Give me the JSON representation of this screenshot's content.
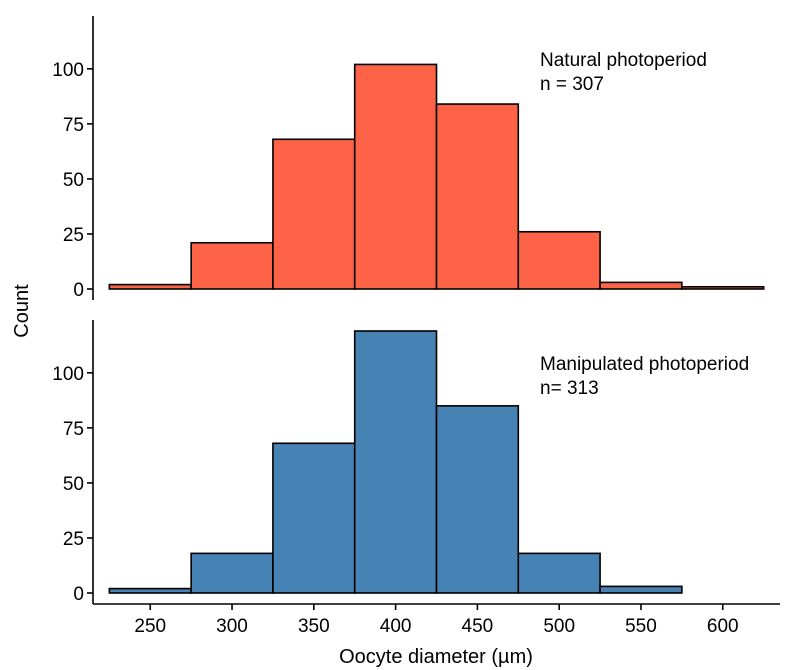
{
  "chart_data": {
    "type": "bar",
    "title": "",
    "xlabel": "Oocyte diameter (µm)",
    "ylabel": "Count",
    "xlim": [
      215,
      635
    ],
    "xticks": [
      250,
      300,
      350,
      400,
      450,
      500,
      550,
      600
    ],
    "bin_width": 50,
    "grid": false,
    "panels": [
      {
        "annotation_line1": "Natural photoperiod",
        "annotation_line2": "n = 307",
        "color": "#FF6347",
        "ylim": [
          -5,
          124
        ],
        "yticks": [
          0,
          25,
          50,
          75,
          100
        ],
        "bins": [
          {
            "center": 250,
            "count": 2
          },
          {
            "center": 300,
            "count": 21
          },
          {
            "center": 350,
            "count": 68
          },
          {
            "center": 400,
            "count": 102
          },
          {
            "center": 450,
            "count": 84
          },
          {
            "center": 500,
            "count": 26
          },
          {
            "center": 550,
            "count": 3
          },
          {
            "center": 600,
            "count": 1
          }
        ]
      },
      {
        "annotation_line1": "Manipulated photoperiod",
        "annotation_line2": "n= 313",
        "color": "#4682B4",
        "ylim": [
          -5,
          124
        ],
        "yticks": [
          0,
          25,
          50,
          75,
          100
        ],
        "bins": [
          {
            "center": 250,
            "count": 2
          },
          {
            "center": 300,
            "count": 18
          },
          {
            "center": 350,
            "count": 68
          },
          {
            "center": 400,
            "count": 119
          },
          {
            "center": 450,
            "count": 85
          },
          {
            "center": 500,
            "count": 18
          },
          {
            "center": 550,
            "count": 3
          },
          {
            "center": 600,
            "count": 0
          }
        ]
      }
    ]
  }
}
